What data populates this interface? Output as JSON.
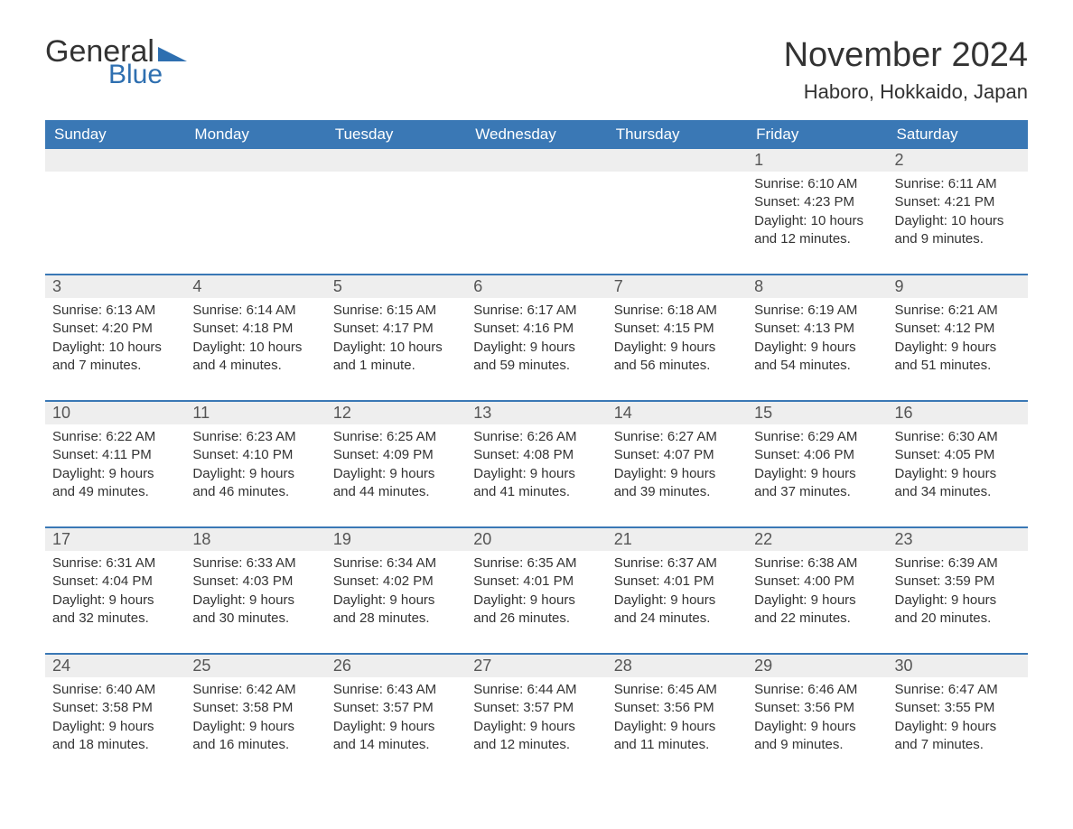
{
  "logo": {
    "text1": "General",
    "text2": "Blue",
    "triangle_color": "#2e6fb0"
  },
  "title": "November 2024",
  "location": "Haboro, Hokkaido, Japan",
  "colors": {
    "header_bg": "#3a78b5",
    "header_text": "#ffffff",
    "daynum_bg": "#eeeeee",
    "week_border": "#3a78b5",
    "body_text": "#333333"
  },
  "day_headers": [
    "Sunday",
    "Monday",
    "Tuesday",
    "Wednesday",
    "Thursday",
    "Friday",
    "Saturday"
  ],
  "weeks": [
    [
      null,
      null,
      null,
      null,
      null,
      {
        "n": "1",
        "sr": "6:10 AM",
        "ss": "4:23 PM",
        "dl": "10 hours and 12 minutes."
      },
      {
        "n": "2",
        "sr": "6:11 AM",
        "ss": "4:21 PM",
        "dl": "10 hours and 9 minutes."
      }
    ],
    [
      {
        "n": "3",
        "sr": "6:13 AM",
        "ss": "4:20 PM",
        "dl": "10 hours and 7 minutes."
      },
      {
        "n": "4",
        "sr": "6:14 AM",
        "ss": "4:18 PM",
        "dl": "10 hours and 4 minutes."
      },
      {
        "n": "5",
        "sr": "6:15 AM",
        "ss": "4:17 PM",
        "dl": "10 hours and 1 minute."
      },
      {
        "n": "6",
        "sr": "6:17 AM",
        "ss": "4:16 PM",
        "dl": "9 hours and 59 minutes."
      },
      {
        "n": "7",
        "sr": "6:18 AM",
        "ss": "4:15 PM",
        "dl": "9 hours and 56 minutes."
      },
      {
        "n": "8",
        "sr": "6:19 AM",
        "ss": "4:13 PM",
        "dl": "9 hours and 54 minutes."
      },
      {
        "n": "9",
        "sr": "6:21 AM",
        "ss": "4:12 PM",
        "dl": "9 hours and 51 minutes."
      }
    ],
    [
      {
        "n": "10",
        "sr": "6:22 AM",
        "ss": "4:11 PM",
        "dl": "9 hours and 49 minutes."
      },
      {
        "n": "11",
        "sr": "6:23 AM",
        "ss": "4:10 PM",
        "dl": "9 hours and 46 minutes."
      },
      {
        "n": "12",
        "sr": "6:25 AM",
        "ss": "4:09 PM",
        "dl": "9 hours and 44 minutes."
      },
      {
        "n": "13",
        "sr": "6:26 AM",
        "ss": "4:08 PM",
        "dl": "9 hours and 41 minutes."
      },
      {
        "n": "14",
        "sr": "6:27 AM",
        "ss": "4:07 PM",
        "dl": "9 hours and 39 minutes."
      },
      {
        "n": "15",
        "sr": "6:29 AM",
        "ss": "4:06 PM",
        "dl": "9 hours and 37 minutes."
      },
      {
        "n": "16",
        "sr": "6:30 AM",
        "ss": "4:05 PM",
        "dl": "9 hours and 34 minutes."
      }
    ],
    [
      {
        "n": "17",
        "sr": "6:31 AM",
        "ss": "4:04 PM",
        "dl": "9 hours and 32 minutes."
      },
      {
        "n": "18",
        "sr": "6:33 AM",
        "ss": "4:03 PM",
        "dl": "9 hours and 30 minutes."
      },
      {
        "n": "19",
        "sr": "6:34 AM",
        "ss": "4:02 PM",
        "dl": "9 hours and 28 minutes."
      },
      {
        "n": "20",
        "sr": "6:35 AM",
        "ss": "4:01 PM",
        "dl": "9 hours and 26 minutes."
      },
      {
        "n": "21",
        "sr": "6:37 AM",
        "ss": "4:01 PM",
        "dl": "9 hours and 24 minutes."
      },
      {
        "n": "22",
        "sr": "6:38 AM",
        "ss": "4:00 PM",
        "dl": "9 hours and 22 minutes."
      },
      {
        "n": "23",
        "sr": "6:39 AM",
        "ss": "3:59 PM",
        "dl": "9 hours and 20 minutes."
      }
    ],
    [
      {
        "n": "24",
        "sr": "6:40 AM",
        "ss": "3:58 PM",
        "dl": "9 hours and 18 minutes."
      },
      {
        "n": "25",
        "sr": "6:42 AM",
        "ss": "3:58 PM",
        "dl": "9 hours and 16 minutes."
      },
      {
        "n": "26",
        "sr": "6:43 AM",
        "ss": "3:57 PM",
        "dl": "9 hours and 14 minutes."
      },
      {
        "n": "27",
        "sr": "6:44 AM",
        "ss": "3:57 PM",
        "dl": "9 hours and 12 minutes."
      },
      {
        "n": "28",
        "sr": "6:45 AM",
        "ss": "3:56 PM",
        "dl": "9 hours and 11 minutes."
      },
      {
        "n": "29",
        "sr": "6:46 AM",
        "ss": "3:56 PM",
        "dl": "9 hours and 9 minutes."
      },
      {
        "n": "30",
        "sr": "6:47 AM",
        "ss": "3:55 PM",
        "dl": "9 hours and 7 minutes."
      }
    ]
  ],
  "labels": {
    "sunrise": "Sunrise:",
    "sunset": "Sunset:",
    "daylight": "Daylight:"
  }
}
